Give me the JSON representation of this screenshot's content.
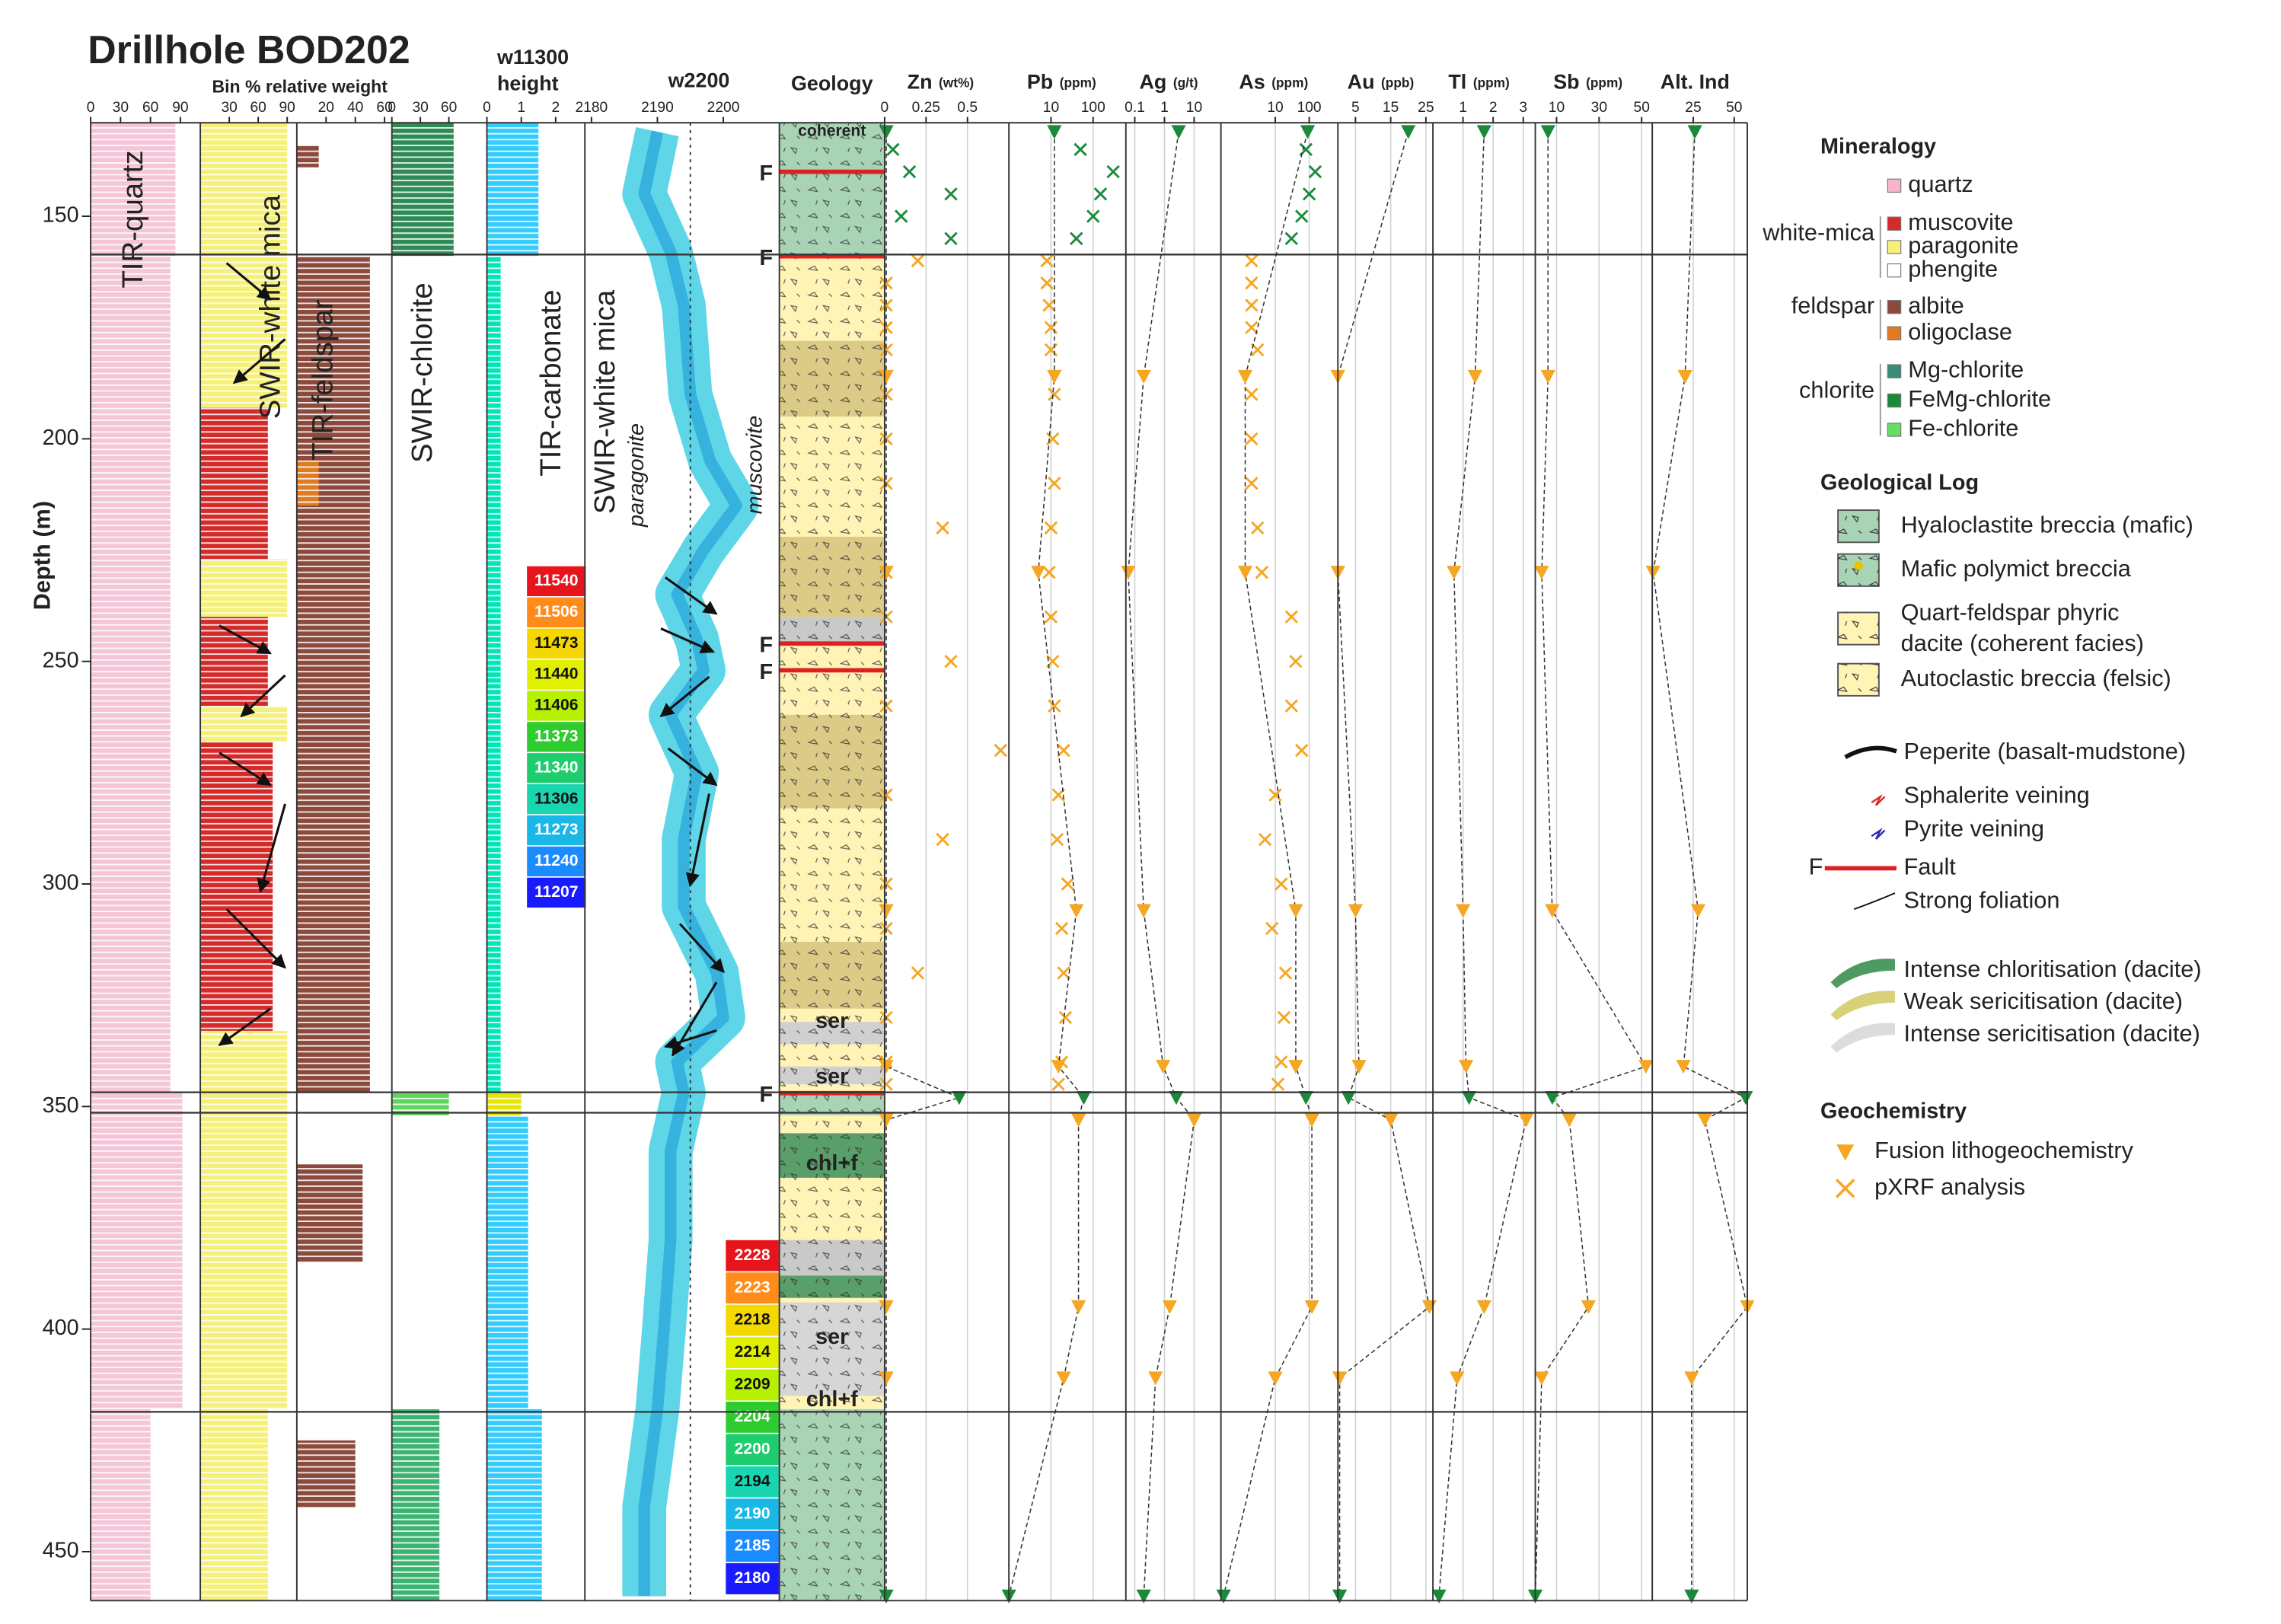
{
  "chart_data": {
    "type": "well_log",
    "title": "Drillhole BOD202",
    "subtitle": "Bin % relative weight",
    "ylabel": "Depth (m)",
    "ylim": [
      129,
      461
    ],
    "yticks": [
      150,
      200,
      250,
      300,
      350,
      400,
      450
    ],
    "boundaries": [
      158.6,
      346.8,
      351.4,
      418.6
    ],
    "mineral_columns": [
      {
        "label": "TIR-quartz",
        "lim": [
          0,
          110
        ],
        "ticks": [
          0,
          30,
          60,
          90
        ],
        "zones": [
          {
            "from": 129,
            "to": 159,
            "value": 85,
            "color": "#f4c6d7"
          },
          {
            "from": 159,
            "to": 347,
            "value": 80,
            "color": "#f4c6d7"
          },
          {
            "from": 347,
            "to": 418,
            "value": 92,
            "color": "#f4c6d7"
          },
          {
            "from": 418,
            "to": 461,
            "value": 60,
            "color": "#f4c6d7"
          }
        ]
      },
      {
        "label": "SWIR-white mica",
        "lim": [
          0,
          100
        ],
        "ticks": [
          30,
          60,
          90
        ],
        "zones": [
          {
            "from": 129,
            "to": 193,
            "value": 90,
            "color": "#f5f07a"
          },
          {
            "from": 193,
            "to": 227,
            "value": 70,
            "color": "#d42a2a"
          },
          {
            "from": 227,
            "to": 240,
            "value": 90,
            "color": "#f5f07a"
          },
          {
            "from": 240,
            "to": 260,
            "value": 70,
            "color": "#d42a2a"
          },
          {
            "from": 260,
            "to": 268,
            "value": 90,
            "color": "#f5f07a"
          },
          {
            "from": 268,
            "to": 333,
            "value": 75,
            "color": "#d42a2a"
          },
          {
            "from": 333,
            "to": 418,
            "value": 90,
            "color": "#f5f07a"
          },
          {
            "from": 418,
            "to": 461,
            "value": 70,
            "color": "#f5f07a"
          }
        ]
      },
      {
        "label": "TIR-feldspar",
        "lim": [
          0,
          65
        ],
        "ticks": [
          20,
          40,
          60
        ],
        "zones": [
          {
            "from": 134,
            "to": 139,
            "value": 15,
            "color": "#8b4a3c"
          },
          {
            "from": 159,
            "to": 347,
            "value": 50,
            "color": "#8b4a3c"
          },
          {
            "from": 205,
            "to": 215,
            "value": 15,
            "color": "#e07b20"
          },
          {
            "from": 363,
            "to": 385,
            "value": 45,
            "color": "#8b4a3c"
          },
          {
            "from": 425,
            "to": 440,
            "value": 40,
            "color": "#8b4a3c"
          }
        ]
      },
      {
        "label": "SWIR-chlorite",
        "lim": [
          0,
          100
        ],
        "ticks": [
          0,
          30,
          60
        ],
        "zones": [
          {
            "from": 129,
            "to": 159,
            "value": 65,
            "color": "#2e8b57"
          },
          {
            "from": 347,
            "to": 352,
            "value": 60,
            "color": "#5cd65c"
          },
          {
            "from": 418,
            "to": 461,
            "value": 50,
            "color": "#3cb371"
          }
        ]
      },
      {
        "header": [
          "w11300",
          "height"
        ],
        "label": "TIR-carbonate",
        "lim": [
          0,
          2.85
        ],
        "ticks": [
          0,
          1,
          2
        ],
        "zones": [
          {
            "from": 129,
            "to": 159,
            "value": 1.5,
            "color": "#33ccff"
          },
          {
            "from": 159,
            "to": 347,
            "value": 0.4,
            "color": "#00e6b8"
          },
          {
            "from": 347,
            "to": 352,
            "value": 1,
            "color": "#e6e600"
          },
          {
            "from": 352,
            "to": 418,
            "value": 1.2,
            "color": "#33ccff"
          },
          {
            "from": 418,
            "to": 461,
            "value": 1.6,
            "color": "#33ccff"
          }
        ]
      }
    ],
    "w2200": {
      "header": "w2200",
      "label": "SWIR-white mica",
      "lim": [
        2179,
        2208.5
      ],
      "ticks": [
        2180,
        2190,
        2200
      ],
      "reference": 2195,
      "depths": [
        131,
        145,
        158,
        170,
        190,
        205,
        215,
        225,
        235,
        245,
        252,
        262,
        275,
        290,
        305,
        320,
        330,
        340,
        347,
        360,
        380,
        400,
        418,
        440,
        460
      ],
      "values": [
        2190,
        2188,
        2192,
        2194,
        2195,
        2198,
        2202,
        2197,
        2193,
        2196,
        2197,
        2192,
        2196,
        2194,
        2194,
        2199,
        2200,
        2193,
        2194,
        2192,
        2192,
        2191,
        2190,
        2188,
        2188
      ],
      "annotations": [
        "paragonite",
        "muscovite"
      ]
    },
    "colorbars": [
      {
        "values": [
          11540,
          11506,
          11473,
          11440,
          11406,
          11373,
          11340,
          11306,
          11273,
          11240,
          11207
        ],
        "colors": [
          "#e8141c",
          "#ff8c1a",
          "#f5d800",
          "#e0f000",
          "#b7f000",
          "#2ecc2e",
          "#1fcc6e",
          "#19d6b0",
          "#1ab8e6",
          "#1a8cff",
          "#1a1aff"
        ]
      },
      {
        "values": [
          2228,
          2223,
          2218,
          2214,
          2209,
          2204,
          2200,
          2194,
          2190,
          2185,
          2180
        ],
        "colors": [
          "#e8141c",
          "#ff8c1a",
          "#f5d800",
          "#e0f000",
          "#b7f000",
          "#2ecc2e",
          "#1fcc6e",
          "#19d6b0",
          "#1ab8e6",
          "#1a8cff",
          "#1a1aff"
        ]
      }
    ],
    "geology": {
      "header": "Geology",
      "fault_label": "F",
      "faults": [
        140,
        159,
        246,
        252,
        347
      ],
      "intervals": [
        {
          "from": 129,
          "to": 159,
          "fill": "#a9d3b5"
        },
        {
          "from": 159,
          "to": 347,
          "fill": "#fff3b5"
        },
        {
          "from": 178,
          "to": 195,
          "fill": "#dccb86"
        },
        {
          "from": 222,
          "to": 240,
          "fill": "#dccb86"
        },
        {
          "from": 240,
          "to": 246,
          "fill": "#c9c9c9"
        },
        {
          "from": 262,
          "to": 283,
          "fill": "#dccb86"
        },
        {
          "from": 313,
          "to": 328,
          "fill": "#dccb86"
        },
        {
          "from": 331,
          "to": 336,
          "fill": "#d0d0d0"
        },
        {
          "from": 341,
          "to": 345,
          "fill": "#d0d0d0"
        },
        {
          "from": 347,
          "to": 352,
          "fill": "#a9d3b5"
        },
        {
          "from": 352,
          "to": 418,
          "fill": "#fff3b5"
        },
        {
          "from": 356,
          "to": 366,
          "fill": "#5a9e6a"
        },
        {
          "from": 380,
          "to": 388,
          "fill": "#c9c9c9"
        },
        {
          "from": 388,
          "to": 393,
          "fill": "#5a9e6a"
        },
        {
          "from": 394,
          "to": 415,
          "fill": "#d6d6d6"
        },
        {
          "from": 418,
          "to": 461,
          "fill": "#a9d3b5"
        }
      ],
      "labels": [
        {
          "depth": 131,
          "text": "coherent"
        },
        {
          "depth": 331,
          "text": "ser"
        },
        {
          "depth": 343.5,
          "text": "ser"
        },
        {
          "depth": 363,
          "text": "chl+f"
        },
        {
          "depth": 402,
          "text": "ser"
        },
        {
          "depth": 416,
          "text": "chl+f"
        }
      ]
    },
    "fusion_depths": [
      131,
      186,
      230,
      306,
      341,
      348,
      353,
      395,
      411,
      460
    ],
    "fusion_colors": [
      "#1a8a3a",
      "#f5a623",
      "#f5a623",
      "#f5a623",
      "#f5a623",
      "#1a8a3a",
      "#f5a623",
      "#f5a623",
      "#f5a623",
      "#1a8a3a"
    ],
    "pxrf_depths": [
      135,
      140,
      145,
      150,
      155,
      160,
      165,
      170,
      175,
      180,
      190,
      200,
      210,
      220,
      230,
      240,
      250,
      260,
      270,
      280,
      290,
      300,
      310,
      320,
      330,
      340,
      345
    ],
    "pxrf_colors": [
      "#1a8a3a",
      "#1a8a3a",
      "#1a8a3a",
      "#1a8a3a",
      "#1a8a3a",
      "#f5a623",
      "#f5a623",
      "#f5a623",
      "#f5a623",
      "#f5a623",
      "#f5a623",
      "#f5a623",
      "#f5a623",
      "#f5a623",
      "#f5a623",
      "#f5a623",
      "#f5a623",
      "#f5a623",
      "#f5a623",
      "#f5a623",
      "#f5a623",
      "#f5a623",
      "#f5a623",
      "#f5a623",
      "#f5a623",
      "#f5a623",
      "#f5a623"
    ],
    "geochem": [
      {
        "name": "Zn",
        "unit": "(wt%)",
        "xlim": [
          0,
          0.75
        ],
        "xticks": [
          0,
          0.25,
          0.5
        ],
        "fusion": [
          0.01,
          0.01,
          0.01,
          0.01,
          0.01,
          0.45,
          0.01,
          0.01,
          0.01,
          0.01
        ],
        "pxrf": [
          0.05,
          0.15,
          0.4,
          0.1,
          0.4,
          0.2,
          0.01,
          0.01,
          0.01,
          0.01,
          0.01,
          0.01,
          0.01,
          0.35,
          0.01,
          0.01,
          0.4,
          0.01,
          0.7,
          0.01,
          0.35,
          0.01,
          0.01,
          0.2,
          0.01,
          0.01,
          0.01
        ]
      },
      {
        "name": "Pb",
        "unit": "(ppm)",
        "log": true,
        "xlim": [
          1,
          600
        ],
        "xticks": [
          10,
          100
        ],
        "fusion": [
          12,
          12,
          5,
          40,
          15,
          60,
          45,
          45,
          20,
          1
        ],
        "pxrf": [
          50,
          300,
          150,
          100,
          40,
          8,
          8,
          9,
          10,
          10,
          12,
          11,
          12,
          10,
          9,
          10,
          11,
          12,
          20,
          15,
          14,
          25,
          18,
          20,
          22,
          18,
          15
        ]
      },
      {
        "name": "Ag",
        "unit": "(g/t)",
        "log": true,
        "xlim": [
          0.05,
          80
        ],
        "xticks": [
          0.1,
          1,
          10
        ],
        "fusion": [
          3,
          0.2,
          0.06,
          0.2,
          0.9,
          2.5,
          10,
          1.5,
          0.5,
          0.2
        ]
      },
      {
        "name": "As",
        "unit": "(ppm)",
        "log": true,
        "xlim": [
          0.25,
          700
        ],
        "xticks": [
          10,
          100
        ],
        "fusion": [
          90,
          1.3,
          1.3,
          40,
          40,
          80,
          120,
          120,
          10,
          0.3
        ],
        "pxrf": [
          80,
          150,
          100,
          60,
          30,
          2,
          2,
          2,
          2,
          3,
          2,
          2,
          2,
          3,
          4,
          30,
          40,
          30,
          60,
          10,
          5,
          15,
          8,
          20,
          18,
          15,
          12
        ]
      },
      {
        "name": "Au",
        "unit": "(ppb)",
        "xlim": [
          0,
          27
        ],
        "xticks": [
          5,
          15,
          25
        ],
        "fusion": [
          20,
          0,
          0,
          5,
          6,
          3,
          15,
          26,
          0.5,
          0.5
        ]
      },
      {
        "name": "Tl",
        "unit": "(ppm)",
        "xlim": [
          0,
          3.4
        ],
        "xticks": [
          1,
          2,
          3
        ],
        "fusion": [
          1.7,
          1.4,
          0.7,
          1,
          1.1,
          1.2,
          3.1,
          1.7,
          0.8,
          0.2
        ]
      },
      {
        "name": "Sb",
        "unit": "(ppm)",
        "xlim": [
          0,
          55
        ],
        "xticks": [
          10,
          30,
          50
        ],
        "fusion": [
          6,
          6,
          3,
          8,
          52,
          8,
          16,
          25,
          3,
          0
        ]
      },
      {
        "name": "Alt. Ind",
        "xlim": [
          0,
          58
        ],
        "xticks": [
          25,
          50
        ],
        "fusion": [
          26,
          20,
          0.5,
          28,
          19,
          57,
          32,
          58,
          24,
          24
        ]
      }
    ],
    "legend": {
      "mineralogy_title": "Mineralogy",
      "groups": [
        "white-mica",
        "feldspar",
        "chlorite"
      ],
      "minerals": [
        "quartz",
        "muscovite",
        "paragonite",
        "phengite",
        "albite",
        "oligoclase",
        "Mg-chlorite",
        "FeMg-chlorite",
        "Fe-chlorite"
      ],
      "mineral_colors": [
        "#f4b6c8",
        "#d42a2a",
        "#f5f07a",
        "#ffffff",
        "#8b4a3c",
        "#e07b20",
        "#3a8c7a",
        "#1a8a3a",
        "#66dd66"
      ],
      "geology_title": "Geological Log",
      "lithologies": [
        "Hyaloclastite breccia (mafic)",
        "Mafic polymict breccia",
        "Quart-feldspar phyric",
        "dacite (coherent facies)",
        "Autoclastic breccia (felsic)"
      ],
      "features": [
        "Peperite (basalt-mudstone)",
        "Sphalerite veining",
        "Pyrite veining",
        "Fault",
        "Strong foliation"
      ],
      "alterations": [
        "Intense chloritisation (dacite)",
        "Weak sericitisation (dacite)",
        "Intense sericitisation (dacite)"
      ],
      "geochem_title": "Geochemistry",
      "geochem": [
        "Fusion lithogeochemistry",
        "pXRF analysis"
      ]
    }
  }
}
